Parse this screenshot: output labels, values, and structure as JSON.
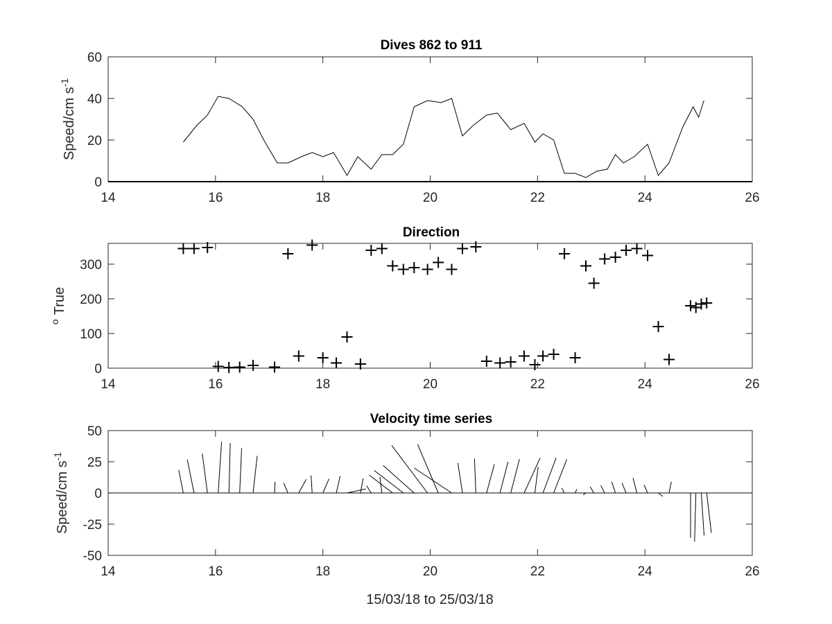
{
  "chart_data": [
    {
      "type": "line",
      "title": "Dives 862 to 911",
      "xlabel": "",
      "ylabel": "Speed/cm s",
      "ylabel_superscript": "-1",
      "xlim": [
        14,
        26
      ],
      "ylim": [
        0,
        60
      ],
      "xticks": [
        14,
        16,
        18,
        20,
        22,
        24,
        26
      ],
      "yticks": [
        0,
        20,
        40,
        60
      ],
      "zero_line": true,
      "grid": false,
      "x": [
        15.4,
        15.65,
        15.85,
        16.05,
        16.25,
        16.5,
        16.7,
        16.9,
        17.15,
        17.35,
        17.6,
        17.8,
        18.0,
        18.2,
        18.45,
        18.65,
        18.9,
        19.1,
        19.3,
        19.5,
        19.7,
        19.95,
        20.2,
        20.4,
        20.6,
        20.8,
        21.05,
        21.25,
        21.5,
        21.75,
        21.95,
        22.1,
        22.3,
        22.5,
        22.7,
        22.9,
        23.1,
        23.3,
        23.45,
        23.6,
        23.8,
        24.05,
        24.25,
        24.45,
        24.7,
        24.9,
        25.0,
        25.1
      ],
      "y": [
        19,
        27,
        32,
        41,
        40,
        36,
        30,
        20,
        9,
        9,
        12,
        14,
        12,
        14,
        3,
        12,
        6,
        13,
        13,
        18,
        36,
        39,
        38,
        40,
        22,
        27,
        32,
        33,
        25,
        28,
        19,
        23,
        20,
        4,
        4,
        2,
        5,
        6,
        13,
        9,
        12,
        18,
        3,
        9,
        26,
        36,
        31,
        39
      ]
    },
    {
      "type": "scatter",
      "title": "Direction",
      "xlabel": "",
      "ylabel": "True",
      "ylabel_superscript": "o",
      "marker": "+",
      "xlim": [
        14,
        26
      ],
      "ylim": [
        0,
        360
      ],
      "xticks": [
        14,
        16,
        18,
        20,
        22,
        24,
        26
      ],
      "yticks": [
        0,
        100,
        200,
        300
      ],
      "grid": false,
      "x": [
        15.4,
        15.6,
        15.85,
        16.05,
        16.25,
        16.45,
        16.7,
        17.1,
        17.35,
        17.55,
        17.8,
        18.0,
        18.25,
        18.45,
        18.7,
        18.9,
        19.1,
        19.3,
        19.5,
        19.7,
        19.95,
        20.15,
        20.4,
        20.6,
        20.85,
        21.05,
        21.3,
        21.5,
        21.75,
        21.95,
        22.1,
        22.3,
        22.5,
        22.7,
        22.9,
        23.05,
        23.25,
        23.45,
        23.65,
        23.85,
        24.05,
        24.25,
        24.45,
        24.85,
        24.95,
        25.05,
        25.15
      ],
      "y": [
        345,
        345,
        348,
        5,
        2,
        3,
        8,
        3,
        330,
        35,
        355,
        30,
        15,
        90,
        12,
        340,
        345,
        295,
        285,
        290,
        285,
        305,
        285,
        345,
        350,
        20,
        15,
        18,
        35,
        10,
        35,
        40,
        330,
        30,
        295,
        245,
        315,
        320,
        340,
        345,
        325,
        120,
        25,
        180,
        175,
        185,
        188
      ]
    },
    {
      "type": "quiver",
      "title": "Velocity time series",
      "xlabel": "15/03/18 to 25/03/18",
      "ylabel": "Speed/cm s",
      "ylabel_superscript": "-1",
      "xlim": [
        14,
        26
      ],
      "ylim": [
        -50,
        50
      ],
      "xticks": [
        14,
        16,
        18,
        20,
        22,
        24,
        26
      ],
      "yticks": [
        50,
        25,
        0,
        -25,
        -50
      ],
      "zero_line": true,
      "grid": false,
      "x_scale_days_per_unit": 0.0175,
      "x": [
        15.4,
        15.6,
        15.85,
        16.05,
        16.25,
        16.45,
        16.7,
        17.1,
        17.35,
        17.55,
        17.8,
        18.0,
        18.25,
        18.45,
        18.7,
        18.9,
        19.1,
        19.3,
        19.5,
        19.7,
        19.95,
        20.15,
        20.4,
        20.6,
        20.85,
        21.05,
        21.3,
        21.5,
        21.75,
        21.95,
        22.1,
        22.3,
        22.5,
        22.7,
        22.9,
        23.05,
        23.25,
        23.45,
        23.65,
        23.85,
        24.05,
        24.25,
        24.45,
        24.85,
        24.95,
        25.05,
        25.15
      ],
      "u": [
        -4.9,
        -7.2,
        -5.5,
        3.6,
        1.4,
        2.1,
        4.4,
        0.5,
        -4.6,
        8.0,
        -1.1,
        6.5,
        4.1,
        20.0,
        2.9,
        -4.8,
        -2.1,
        -25.0,
        -31.0,
        -33.0,
        -38.0,
        -22.0,
        -40.0,
        -4.8,
        -1.4,
        8.2,
        8.6,
        9.3,
        17.0,
        3.5,
        14.0,
        14.0,
        -2.8,
        1.8,
        -2.8,
        -4.1,
        -4.1,
        -3.9,
        -4.5,
        -4.1,
        -3.8,
        4.8,
        2.4,
        0.0,
        -1.4,
        3.0,
        5.0
      ],
      "v": [
        18.5,
        26.8,
        31.5,
        41.0,
        40.0,
        35.9,
        29.8,
        9.0,
        8.0,
        11.0,
        14.0,
        11.3,
        13.6,
        3.2,
        11.6,
        5.8,
        12.7,
        14.4,
        18.0,
        22.0,
        38.0,
        39.0,
        20.0,
        24.0,
        27.5,
        23.0,
        25.0,
        27.0,
        28.0,
        21.0,
        28.0,
        27.0,
        4.0,
        3.0,
        -1.5,
        5.0,
        6.0,
        9.0,
        8.0,
        12.0,
        6.5,
        -2.8,
        9.0,
        -36.0,
        -39.0,
        -34.0,
        -32.0
      ]
    }
  ]
}
